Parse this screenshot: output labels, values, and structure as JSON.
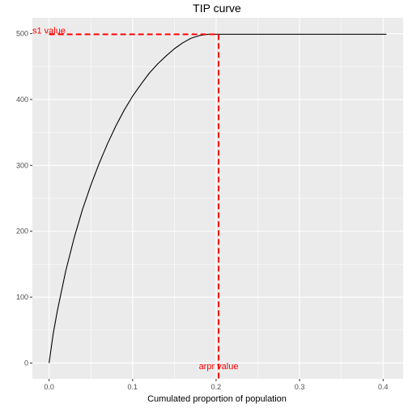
{
  "chart_data": {
    "type": "line",
    "title": "TIP curve",
    "xlabel": "Cumulated proportion of population",
    "ylabel": "",
    "xlim": [
      -0.02,
      0.424
    ],
    "ylim": [
      -24,
      524
    ],
    "x_ticks": [
      {
        "value": 0.0,
        "label": "0.0"
      },
      {
        "value": 0.1,
        "label": "0.1"
      },
      {
        "value": 0.2,
        "label": "0.2"
      },
      {
        "value": 0.3,
        "label": "0.3"
      },
      {
        "value": 0.4,
        "label": "0.4"
      }
    ],
    "y_ticks": [
      {
        "value": 0,
        "label": "0"
      },
      {
        "value": 100,
        "label": "100"
      },
      {
        "value": 200,
        "label": "200"
      },
      {
        "value": 300,
        "label": "300"
      },
      {
        "value": 400,
        "label": "400"
      },
      {
        "value": 500,
        "label": "500"
      }
    ],
    "grid": true,
    "background_color": "#ebebeb",
    "series": [
      {
        "color": "#000000",
        "x": [
          0.0,
          0.005,
          0.01,
          0.02,
          0.03,
          0.04,
          0.05,
          0.06,
          0.07,
          0.08,
          0.09,
          0.1,
          0.11,
          0.12,
          0.13,
          0.14,
          0.15,
          0.16,
          0.17,
          0.18,
          0.19,
          0.203,
          0.25,
          0.3,
          0.35,
          0.404
        ],
        "y": [
          0,
          45,
          80,
          140,
          190,
          233,
          270,
          303,
          333,
          360,
          384,
          405,
          423,
          440,
          454,
          466,
          477,
          486,
          493,
          497,
          499,
          499,
          499,
          499,
          499,
          499
        ]
      }
    ],
    "reference_lines": {
      "color": "#ff0000",
      "x_value": 0.203,
      "y_value": 499,
      "x_label": "arpr value",
      "y_label": "s1 value"
    }
  }
}
